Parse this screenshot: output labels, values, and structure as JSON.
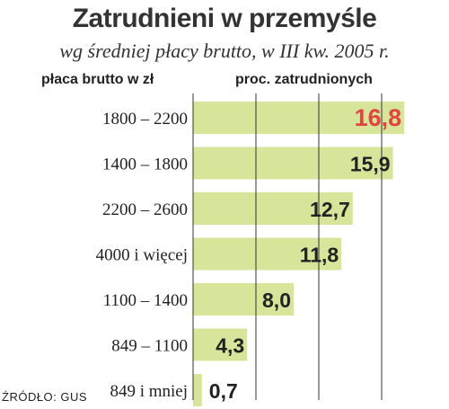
{
  "title": "Zatrudnieni w przemyśle",
  "subtitle": "wg średniej płacy brutto, w III kw. 2005 r.",
  "column_left": "płaca brutto w zł",
  "column_right": "proc. zatrudnionych",
  "source": "ŹRÓDŁO: GUS",
  "colors": {
    "bar": "#d7e59b",
    "grid": "#333333",
    "highlight": "#e2453f",
    "text": "#222222"
  },
  "chart_data": {
    "type": "bar",
    "orientation": "horizontal",
    "categories": [
      "1800 – 2200",
      "1400 – 1800",
      "2200 – 2600",
      "4000 i więcej",
      "1100 – 1400",
      "849 – 1100",
      "849 i mniej"
    ],
    "values": [
      16.8,
      15.9,
      12.7,
      11.8,
      8.0,
      4.3,
      0.7
    ],
    "value_labels": [
      "16,8",
      "15,9",
      "12,7",
      "11,8",
      "8,0",
      "4,3",
      "0,7"
    ],
    "highlight_index": 0,
    "xlim": [
      0,
      20
    ],
    "grid": true,
    "title": "Zatrudnieni w przemyśle",
    "subtitle": "wg średniej płacy brutto, w III kw. 2005 r.",
    "ylabel": "płaca brutto w zł",
    "xlabel": "proc. zatrudnionych"
  }
}
